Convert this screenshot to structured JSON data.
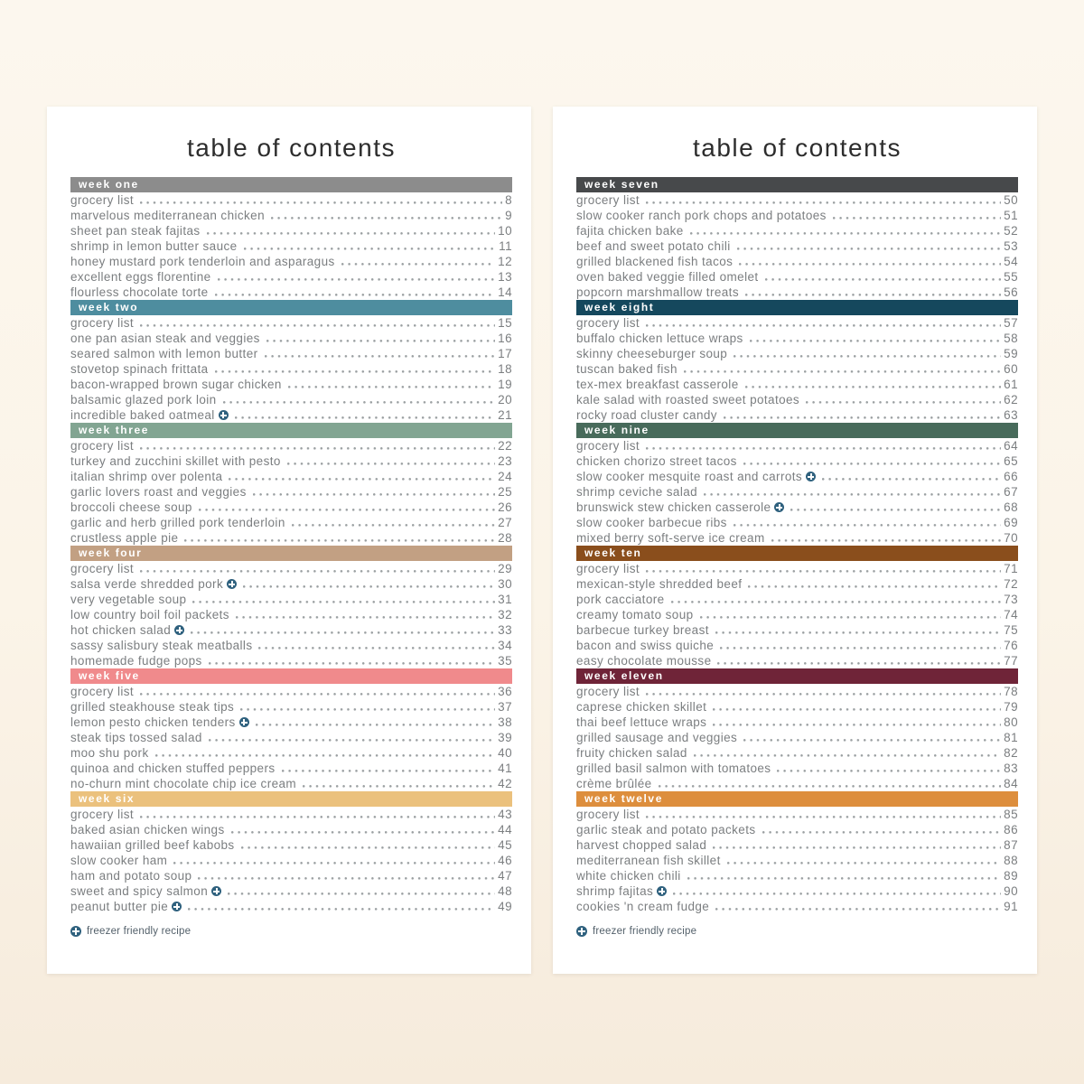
{
  "page_title": "table of contents",
  "legend": {
    "label": "freezer friendly recipe",
    "icon_color": "#2f617e"
  },
  "pages": [
    {
      "sections": [
        {
          "name": "week one",
          "color": "#8c8c8c",
          "entries": [
            {
              "title": "grocery list",
              "page": "8"
            },
            {
              "title": "marvelous mediterranean chicken",
              "page": "9"
            },
            {
              "title": "sheet pan steak fajitas",
              "page": "10"
            },
            {
              "title": "shrimp in lemon butter sauce",
              "page": "11"
            },
            {
              "title": "honey mustard pork tenderloin and asparagus",
              "page": "12"
            },
            {
              "title": "excellent eggs florentine",
              "page": "13"
            },
            {
              "title": "flourless chocolate torte",
              "page": "14"
            }
          ]
        },
        {
          "name": "week two",
          "color": "#4e8d9f",
          "entries": [
            {
              "title": "grocery list",
              "page": "15"
            },
            {
              "title": "one pan asian steak and veggies",
              "page": "16"
            },
            {
              "title": "seared salmon with lemon butter",
              "page": "17"
            },
            {
              "title": "stovetop spinach frittata",
              "page": "18"
            },
            {
              "title": "bacon-wrapped brown sugar chicken",
              "page": "19"
            },
            {
              "title": "balsamic glazed pork loin",
              "page": "20"
            },
            {
              "title": "incredible baked oatmeal",
              "page": "21",
              "freezer": true
            }
          ]
        },
        {
          "name": "week three",
          "color": "#82a592",
          "entries": [
            {
              "title": "grocery list",
              "page": "22"
            },
            {
              "title": "turkey and zucchini skillet with pesto",
              "page": "23"
            },
            {
              "title": "italian shrimp over polenta",
              "page": "24"
            },
            {
              "title": "garlic lovers roast and veggies",
              "page": "25"
            },
            {
              "title": "broccoli cheese soup",
              "page": "26"
            },
            {
              "title": "garlic and herb grilled pork tenderloin",
              "page": "27"
            },
            {
              "title": "crustless apple pie",
              "page": "28"
            }
          ]
        },
        {
          "name": "week four",
          "color": "#c2a083",
          "entries": [
            {
              "title": "grocery list",
              "page": "29"
            },
            {
              "title": "salsa verde shredded pork",
              "page": "30",
              "freezer": true
            },
            {
              "title": "very vegetable soup",
              "page": "31"
            },
            {
              "title": "low country boil foil packets",
              "page": "32"
            },
            {
              "title": "hot chicken salad",
              "page": "33",
              "freezer": true
            },
            {
              "title": "sassy salisbury steak meatballs",
              "page": "34"
            },
            {
              "title": "homemade fudge pops",
              "page": "35"
            }
          ]
        },
        {
          "name": "week five",
          "color": "#f08a8c",
          "entries": [
            {
              "title": "grocery list",
              "page": "36"
            },
            {
              "title": "grilled steakhouse steak tips",
              "page": "37"
            },
            {
              "title": "lemon pesto chicken tenders",
              "page": "38",
              "freezer": true
            },
            {
              "title": "steak tips tossed salad",
              "page": "39"
            },
            {
              "title": "moo shu pork",
              "page": "40"
            },
            {
              "title": "quinoa and chicken stuffed peppers",
              "page": "41"
            },
            {
              "title": "no-churn mint chocolate chip ice cream",
              "page": "42"
            }
          ]
        },
        {
          "name": "week six",
          "color": "#ebc17d",
          "entries": [
            {
              "title": "grocery list",
              "page": "43"
            },
            {
              "title": "baked asian chicken wings",
              "page": "44"
            },
            {
              "title": "hawaiian grilled beef kabobs",
              "page": "45"
            },
            {
              "title": "slow cooker ham",
              "page": "46"
            },
            {
              "title": "ham and potato soup",
              "page": "47"
            },
            {
              "title": "sweet and spicy salmon",
              "page": "48",
              "freezer": true
            },
            {
              "title": "peanut butter pie",
              "page": "49",
              "freezer": true
            }
          ]
        }
      ]
    },
    {
      "sections": [
        {
          "name": "week seven",
          "color": "#47494b",
          "entries": [
            {
              "title": "grocery list",
              "page": "50"
            },
            {
              "title": "slow cooker ranch pork chops and potatoes",
              "page": "51"
            },
            {
              "title": "fajita chicken bake",
              "page": "52"
            },
            {
              "title": "beef and sweet potato chili",
              "page": "53"
            },
            {
              "title": "grilled blackened fish tacos",
              "page": "54"
            },
            {
              "title": "oven baked veggie filled omelet",
              "page": "55"
            },
            {
              "title": "popcorn marshmallow treats",
              "page": "56"
            }
          ]
        },
        {
          "name": "week eight",
          "color": "#15485d",
          "entries": [
            {
              "title": "grocery list",
              "page": "57"
            },
            {
              "title": "buffalo chicken lettuce wraps",
              "page": "58"
            },
            {
              "title": "skinny cheeseburger soup",
              "page": "59"
            },
            {
              "title": "tuscan baked fish",
              "page": "60"
            },
            {
              "title": "tex-mex breakfast casserole",
              "page": "61"
            },
            {
              "title": "kale salad with roasted sweet potatoes",
              "page": "62"
            },
            {
              "title": "rocky road cluster candy",
              "page": "63"
            }
          ]
        },
        {
          "name": "week nine",
          "color": "#486b5b",
          "entries": [
            {
              "title": "grocery list",
              "page": "64"
            },
            {
              "title": "chicken chorizo street tacos",
              "page": "65"
            },
            {
              "title": "slow cooker mesquite roast and carrots",
              "page": "66",
              "freezer": true
            },
            {
              "title": "shrimp ceviche salad",
              "page": "67"
            },
            {
              "title": "brunswick stew chicken casserole",
              "page": "68",
              "freezer": true
            },
            {
              "title": "slow cooker barbecue ribs",
              "page": "69"
            },
            {
              "title": "mixed berry soft-serve ice cream",
              "page": "70"
            }
          ]
        },
        {
          "name": "week ten",
          "color": "#8a4e1c",
          "entries": [
            {
              "title": "grocery list",
              "page": "71"
            },
            {
              "title": "mexican-style shredded beef",
              "page": "72"
            },
            {
              "title": "pork cacciatore",
              "page": "73"
            },
            {
              "title": "creamy tomato soup",
              "page": "74"
            },
            {
              "title": "barbecue turkey breast",
              "page": "75"
            },
            {
              "title": "bacon and swiss quiche",
              "page": "76"
            },
            {
              "title": "easy chocolate mousse",
              "page": "77"
            }
          ]
        },
        {
          "name": "week eleven",
          "color": "#6f2438",
          "entries": [
            {
              "title": "grocery list",
              "page": "78"
            },
            {
              "title": "caprese chicken skillet",
              "page": "79"
            },
            {
              "title": "thai beef lettuce wraps",
              "page": "80"
            },
            {
              "title": "grilled sausage and veggies",
              "page": "81"
            },
            {
              "title": "fruity chicken salad",
              "page": "82"
            },
            {
              "title": "grilled basil salmon with tomatoes",
              "page": "83"
            },
            {
              "title": "crème brûlée",
              "page": "84"
            }
          ]
        },
        {
          "name": "week twelve",
          "color": "#dd8e3d",
          "entries": [
            {
              "title": "grocery list",
              "page": "85"
            },
            {
              "title": "garlic steak and potato packets",
              "page": "86"
            },
            {
              "title": "harvest chopped salad",
              "page": "87"
            },
            {
              "title": "mediterranean fish skillet",
              "page": "88"
            },
            {
              "title": "white chicken chili",
              "page": "89"
            },
            {
              "title": "shrimp fajitas",
              "page": "90",
              "freezer": true
            },
            {
              "title": "cookies 'n cream fudge",
              "page": "91"
            }
          ]
        }
      ]
    }
  ]
}
